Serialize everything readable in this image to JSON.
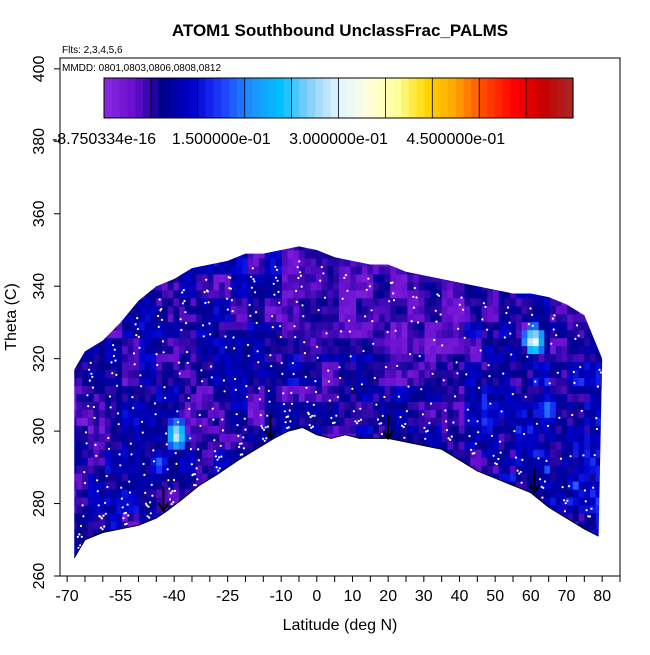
{
  "chart_data": {
    "type": "heatmap",
    "title": "ATOM1 Southbound UnclassFrac_PALMS",
    "flights_note": "Flts: 2,3,4,5,6",
    "dates_note": "MMDD: 0801,0803,0806,0808,0812",
    "xlabel": "Latitude (deg N)",
    "ylabel": "Theta (C)",
    "xlim": [
      -72,
      85
    ],
    "ylim": [
      260,
      403
    ],
    "x_tick_labels": [
      "-70",
      "-55",
      "-40",
      "-25",
      "-10",
      "0",
      "10",
      "20",
      "30",
      "40",
      "50",
      "60",
      "70",
      "80"
    ],
    "x_tick_values": [
      -70,
      -55,
      -40,
      -25,
      -10,
      0,
      10,
      20,
      30,
      40,
      50,
      60,
      70,
      80
    ],
    "y_tick_labels": [
      "260",
      "280",
      "300",
      "320",
      "340",
      "360",
      "380",
      "400"
    ],
    "y_tick_values": [
      260,
      280,
      300,
      320,
      340,
      360,
      380,
      400
    ],
    "colorbar": {
      "min": -8.750334e-16,
      "max": 0.6,
      "tick_labels": [
        "-8.750334e-16",
        "1.500000e-01",
        "3.000000e-01",
        "4.500000e-01"
      ],
      "tick_values": [
        0,
        0.15,
        0.3,
        0.45
      ],
      "colors": [
        "#8a2be2",
        "#6a0fd0",
        "#00008b",
        "#0000cd",
        "#1e3cff",
        "#1e90ff",
        "#00bfff",
        "#87cefa",
        "#e0f4ff",
        "#ffffe0",
        "#ffff99",
        "#ffd700",
        "#ffa500",
        "#ff4500",
        "#ff0000",
        "#c80000",
        "#a52a2a"
      ]
    },
    "upper_boundary": {
      "lat": [
        -68,
        -65,
        -60,
        -55,
        -50,
        -45,
        -40,
        -35,
        -30,
        -25,
        -20,
        -15,
        -10,
        -5,
        0,
        5,
        10,
        15,
        20,
        25,
        30,
        35,
        40,
        45,
        50,
        55,
        60,
        65,
        70,
        75,
        80
      ],
      "theta": [
        317,
        322,
        325,
        330,
        336,
        340,
        342,
        345,
        346,
        347,
        349,
        349,
        350,
        351,
        350,
        348,
        347,
        346,
        346,
        344,
        343,
        342,
        341,
        340,
        339,
        338,
        338,
        337,
        335,
        332,
        320
      ]
    },
    "lower_boundary": {
      "lat": [
        -68,
        -65,
        -60,
        -55,
        -50,
        -45,
        -42,
        -38,
        -33,
        -28,
        -22,
        -17,
        -12,
        -8,
        -4,
        0,
        4,
        8,
        12,
        16,
        20,
        25,
        30,
        35,
        40,
        45,
        50,
        55,
        60,
        65,
        70,
        75,
        79
      ],
      "theta": [
        265,
        270,
        272,
        273,
        274,
        276,
        278,
        281,
        285,
        288,
        292,
        295,
        298,
        300,
        301,
        299,
        298,
        299,
        298,
        298,
        298,
        297,
        296,
        295,
        292,
        289,
        287,
        285,
        283,
        279,
        276,
        273,
        271
      ]
    },
    "hotspots": [
      {
        "lat": -40,
        "theta": 298,
        "value": 0.32
      },
      {
        "lat": 60,
        "theta": 324,
        "value": 0.35
      },
      {
        "lat": 64,
        "theta": 305,
        "value": 0.2
      },
      {
        "lat": -45,
        "theta": 290,
        "value": 0.18
      }
    ],
    "arrow_markers": {
      "lat": [
        -43,
        -13,
        20,
        61
      ],
      "theta": [
        278,
        298,
        298,
        283
      ]
    }
  }
}
